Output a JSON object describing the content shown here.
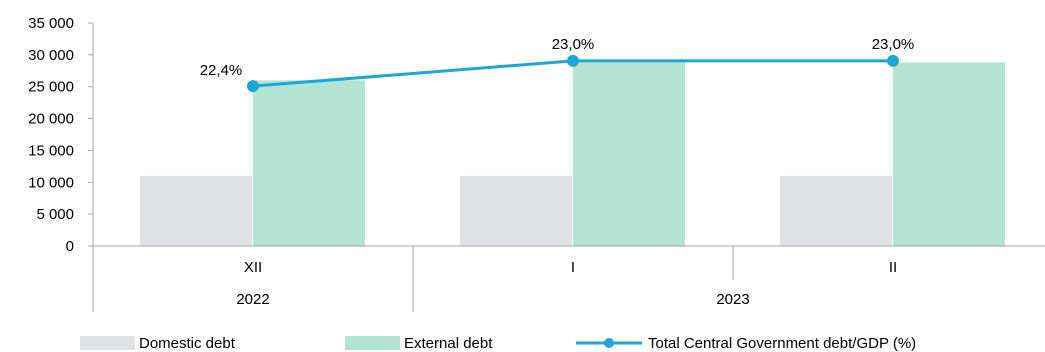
{
  "chart_data": {
    "type": "bar",
    "categories": [
      "XII",
      "I",
      "II"
    ],
    "category_groups": [
      {
        "label": "2022",
        "categories": [
          "XII"
        ]
      },
      {
        "label": "2023",
        "categories": [
          "I",
          "II"
        ]
      }
    ],
    "series": [
      {
        "name": "Domestic  debt",
        "type": "bar",
        "values": [
          11000,
          11000,
          11000
        ],
        "color": "#dfe1e4"
      },
      {
        "name": "External debt",
        "type": "bar",
        "values": [
          26000,
          28800,
          28800
        ],
        "color": "#b3e3d3"
      },
      {
        "name": "Total Central Government debt/GDP (%)",
        "type": "line",
        "axis": "secondary",
        "values": [
          22.4,
          23.0,
          23.0
        ],
        "labels": [
          "22,4%",
          "23,0%",
          "23,0%"
        ],
        "color": "#1ea5dc"
      }
    ],
    "y_ticks": [
      "35 000",
      "30 000",
      "25 000",
      "20 000",
      "15 000",
      "10 000",
      "5 000",
      "0"
    ],
    "ylim": [
      0,
      35000
    ],
    "y2lim": [
      18.6,
      23.9
    ],
    "grid": false,
    "legend_position": "bottom",
    "title": "",
    "xlabel": "",
    "ylabel": ""
  }
}
